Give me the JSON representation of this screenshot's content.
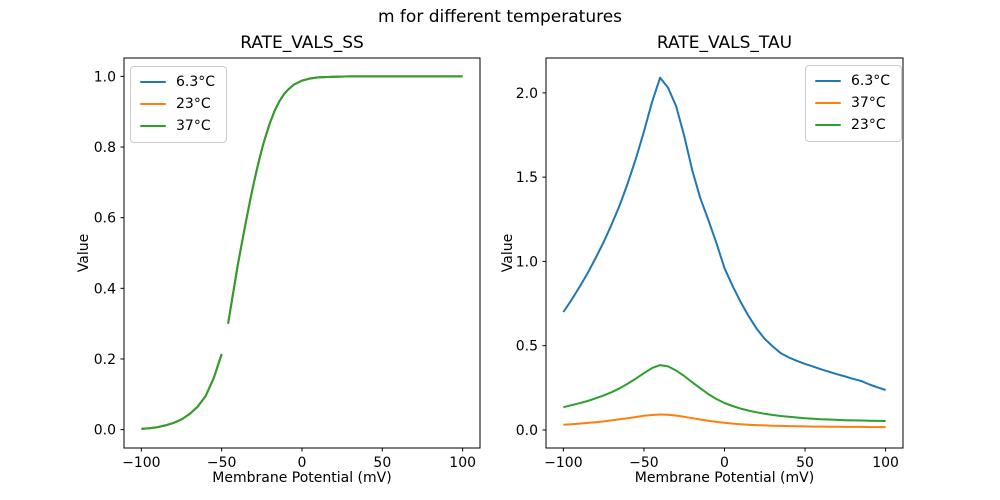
{
  "figure": {
    "suptitle": "m for different temperatures",
    "background_color": "#ffffff"
  },
  "colors": {
    "blue": "#1f77b4",
    "orange": "#ff7f0e",
    "green": "#2ca02c"
  },
  "chart_data": [
    {
      "type": "line",
      "title": "RATE_VALS_SS",
      "xlabel": "Membrane Potential (mV)",
      "ylabel": "Value",
      "xlim": [
        -110.8,
        110.8
      ],
      "ylim": [
        -0.052,
        1.052
      ],
      "xticks": [
        -100,
        -50,
        0,
        50,
        100
      ],
      "xtick_labels": [
        "−100",
        "−50",
        "0",
        "50",
        "100"
      ],
      "yticks": [
        0.0,
        0.2,
        0.4,
        0.6,
        0.8,
        1.0
      ],
      "ytick_labels": [
        "0.0",
        "0.2",
        "0.4",
        "0.6",
        "0.8",
        "1.0"
      ],
      "grid": false,
      "legend": {
        "position": "upper-left",
        "entries": [
          {
            "label": "6.3°C",
            "color": "#1f77b4"
          },
          {
            "label": "23°C",
            "color": "#ff7f0e"
          },
          {
            "label": "37°C",
            "color": "#2ca02c"
          }
        ]
      },
      "overlap_note": "All three temperature curves coincide exactly (sigmoid steady-state); only the last-drawn green curve is visible, with a small break in the line near −48 mV.",
      "series": [
        {
          "name": "6.3°C",
          "color": "#1f77b4",
          "x": [
            -100,
            -95,
            -90,
            -85,
            -80,
            -75,
            -70,
            -65,
            -60,
            -55,
            -50,
            -48,
            -46,
            -44,
            -42,
            -40,
            -38,
            -36,
            -34,
            -32,
            -30,
            -28,
            -26,
            -24,
            -22,
            -20,
            -17,
            -14,
            -11,
            -8,
            -5,
            0,
            5,
            10,
            20,
            30,
            40,
            50,
            60,
            70,
            80,
            90,
            100
          ],
          "y": [
            0.002,
            0.004,
            0.007,
            0.012,
            0.019,
            0.029,
            0.044,
            0.065,
            0.095,
            0.145,
            0.214,
            null,
            0.3,
            0.355,
            0.41,
            0.465,
            0.515,
            0.563,
            0.61,
            0.655,
            0.698,
            0.738,
            0.775,
            0.809,
            0.84,
            0.868,
            0.903,
            0.93,
            0.951,
            0.965,
            0.977,
            0.988,
            0.994,
            0.997,
            0.999,
            1.0,
            1.0,
            1.0,
            1.0,
            1.0,
            1.0,
            1.0,
            1.0
          ]
        },
        {
          "name": "23°C",
          "color": "#ff7f0e",
          "x": [
            -100,
            -95,
            -90,
            -85,
            -80,
            -75,
            -70,
            -65,
            -60,
            -55,
            -50,
            -48,
            -46,
            -44,
            -42,
            -40,
            -38,
            -36,
            -34,
            -32,
            -30,
            -28,
            -26,
            -24,
            -22,
            -20,
            -17,
            -14,
            -11,
            -8,
            -5,
            0,
            5,
            10,
            20,
            30,
            40,
            50,
            60,
            70,
            80,
            90,
            100
          ],
          "y": [
            0.002,
            0.004,
            0.007,
            0.012,
            0.019,
            0.029,
            0.044,
            0.065,
            0.095,
            0.145,
            0.214,
            null,
            0.3,
            0.355,
            0.41,
            0.465,
            0.515,
            0.563,
            0.61,
            0.655,
            0.698,
            0.738,
            0.775,
            0.809,
            0.84,
            0.868,
            0.903,
            0.93,
            0.951,
            0.965,
            0.977,
            0.988,
            0.994,
            0.997,
            0.999,
            1.0,
            1.0,
            1.0,
            1.0,
            1.0,
            1.0,
            1.0,
            1.0
          ]
        },
        {
          "name": "37°C",
          "color": "#2ca02c",
          "x": [
            -100,
            -95,
            -90,
            -85,
            -80,
            -75,
            -70,
            -65,
            -60,
            -55,
            -50,
            -48,
            -46,
            -44,
            -42,
            -40,
            -38,
            -36,
            -34,
            -32,
            -30,
            -28,
            -26,
            -24,
            -22,
            -20,
            -17,
            -14,
            -11,
            -8,
            -5,
            0,
            5,
            10,
            20,
            30,
            40,
            50,
            60,
            70,
            80,
            90,
            100
          ],
          "y": [
            0.002,
            0.004,
            0.007,
            0.012,
            0.019,
            0.029,
            0.044,
            0.065,
            0.095,
            0.145,
            0.214,
            null,
            0.3,
            0.355,
            0.41,
            0.465,
            0.515,
            0.563,
            0.61,
            0.655,
            0.698,
            0.738,
            0.775,
            0.809,
            0.84,
            0.868,
            0.903,
            0.93,
            0.951,
            0.965,
            0.977,
            0.988,
            0.994,
            0.997,
            0.999,
            1.0,
            1.0,
            1.0,
            1.0,
            1.0,
            1.0,
            1.0,
            1.0
          ]
        }
      ]
    },
    {
      "type": "line",
      "title": "RATE_VALS_TAU",
      "xlabel": "Membrane Potential (mV)",
      "ylabel": "Value",
      "xlim": [
        -110.8,
        110.8
      ],
      "ylim": [
        -0.107,
        2.207
      ],
      "xticks": [
        -100,
        -50,
        0,
        50,
        100
      ],
      "xtick_labels": [
        "−100",
        "−50",
        "0",
        "50",
        "100"
      ],
      "yticks": [
        0.0,
        0.5,
        1.0,
        1.5,
        2.0
      ],
      "ytick_labels": [
        "0.0",
        "0.5",
        "1.0",
        "1.5",
        "2.0"
      ],
      "grid": false,
      "legend": {
        "position": "upper-right",
        "entries": [
          {
            "label": "6.3°C",
            "color": "#1f77b4"
          },
          {
            "label": "37°C",
            "color": "#ff7f0e"
          },
          {
            "label": "23°C",
            "color": "#2ca02c"
          }
        ]
      },
      "series": [
        {
          "name": "6.3°C",
          "color": "#1f77b4",
          "x": [
            -100,
            -95,
            -90,
            -85,
            -80,
            -75,
            -70,
            -65,
            -60,
            -55,
            -50,
            -45,
            -40,
            -35,
            -30,
            -25,
            -20,
            -15,
            -10,
            -5,
            0,
            5,
            10,
            15,
            20,
            25,
            30,
            35,
            40,
            45,
            50,
            55,
            60,
            65,
            70,
            75,
            80,
            85,
            90,
            95,
            100
          ],
          "y": [
            0.7,
            0.772,
            0.848,
            0.93,
            1.02,
            1.115,
            1.22,
            1.335,
            1.465,
            1.61,
            1.77,
            1.945,
            2.09,
            2.03,
            1.92,
            1.745,
            1.54,
            1.375,
            1.245,
            1.11,
            0.96,
            0.855,
            0.76,
            0.675,
            0.6,
            0.54,
            0.495,
            0.455,
            0.43,
            0.41,
            0.392,
            0.376,
            0.36,
            0.345,
            0.33,
            0.317,
            0.303,
            0.29,
            0.27,
            0.253,
            0.237
          ]
        },
        {
          "name": "37°C",
          "color": "#ff7f0e",
          "x": [
            -100,
            -95,
            -90,
            -85,
            -80,
            -75,
            -70,
            -65,
            -60,
            -55,
            -50,
            -45,
            -40,
            -35,
            -30,
            -25,
            -20,
            -15,
            -10,
            -5,
            0,
            5,
            10,
            15,
            20,
            25,
            30,
            35,
            40,
            45,
            50,
            55,
            60,
            65,
            70,
            75,
            80,
            85,
            90,
            95,
            100
          ],
          "y": [
            0.031,
            0.034,
            0.038,
            0.042,
            0.046,
            0.051,
            0.057,
            0.063,
            0.07,
            0.077,
            0.084,
            0.089,
            0.092,
            0.09,
            0.085,
            0.078,
            0.07,
            0.062,
            0.055,
            0.048,
            0.043,
            0.038,
            0.034,
            0.031,
            0.029,
            0.027,
            0.025,
            0.024,
            0.023,
            0.022,
            0.021,
            0.02,
            0.02,
            0.019,
            0.019,
            0.018,
            0.018,
            0.018,
            0.017,
            0.017,
            0.017
          ]
        },
        {
          "name": "23°C",
          "color": "#2ca02c",
          "x": [
            -100,
            -95,
            -90,
            -85,
            -80,
            -75,
            -70,
            -65,
            -60,
            -55,
            -50,
            -45,
            -40,
            -35,
            -30,
            -25,
            -20,
            -15,
            -10,
            -5,
            0,
            5,
            10,
            15,
            20,
            25,
            30,
            35,
            40,
            45,
            50,
            55,
            60,
            65,
            70,
            75,
            80,
            85,
            90,
            95,
            100
          ],
          "y": [
            0.135,
            0.147,
            0.159,
            0.172,
            0.188,
            0.205,
            0.224,
            0.248,
            0.275,
            0.305,
            0.337,
            0.367,
            0.385,
            0.377,
            0.352,
            0.32,
            0.283,
            0.247,
            0.213,
            0.184,
            0.16,
            0.142,
            0.127,
            0.115,
            0.105,
            0.096,
            0.089,
            0.083,
            0.078,
            0.074,
            0.07,
            0.067,
            0.064,
            0.062,
            0.06,
            0.058,
            0.057,
            0.056,
            0.055,
            0.054,
            0.053
          ]
        }
      ]
    }
  ]
}
